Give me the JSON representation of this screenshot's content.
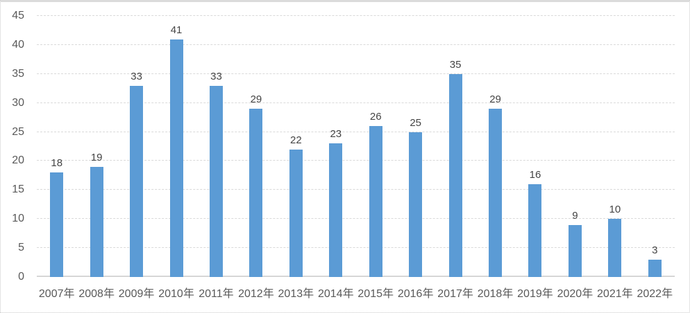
{
  "chart_data": {
    "type": "bar",
    "categories": [
      "2007年",
      "2008年",
      "2009年",
      "2010年",
      "2011年",
      "2012年",
      "2013年",
      "2014年",
      "2015年",
      "2016年",
      "2017年",
      "2018年",
      "2019年",
      "2020年",
      "2021年",
      "2022年"
    ],
    "values": [
      18,
      19,
      33,
      41,
      33,
      29,
      22,
      23,
      26,
      25,
      35,
      29,
      16,
      9,
      10,
      3
    ],
    "title": "",
    "xlabel": "",
    "ylabel": "",
    "ylim": [
      0,
      45
    ],
    "yticks": [
      0,
      5,
      10,
      15,
      20,
      25,
      30,
      35,
      40,
      45
    ],
    "grid": true,
    "legend_position": "none",
    "data_labels": true,
    "bar_color": "#5B9BD5",
    "gridline_color": "#D9D9D9",
    "axis_line_color": "#D6D6D6",
    "tick_label_color": "#595959",
    "data_label_color": "#444444"
  }
}
